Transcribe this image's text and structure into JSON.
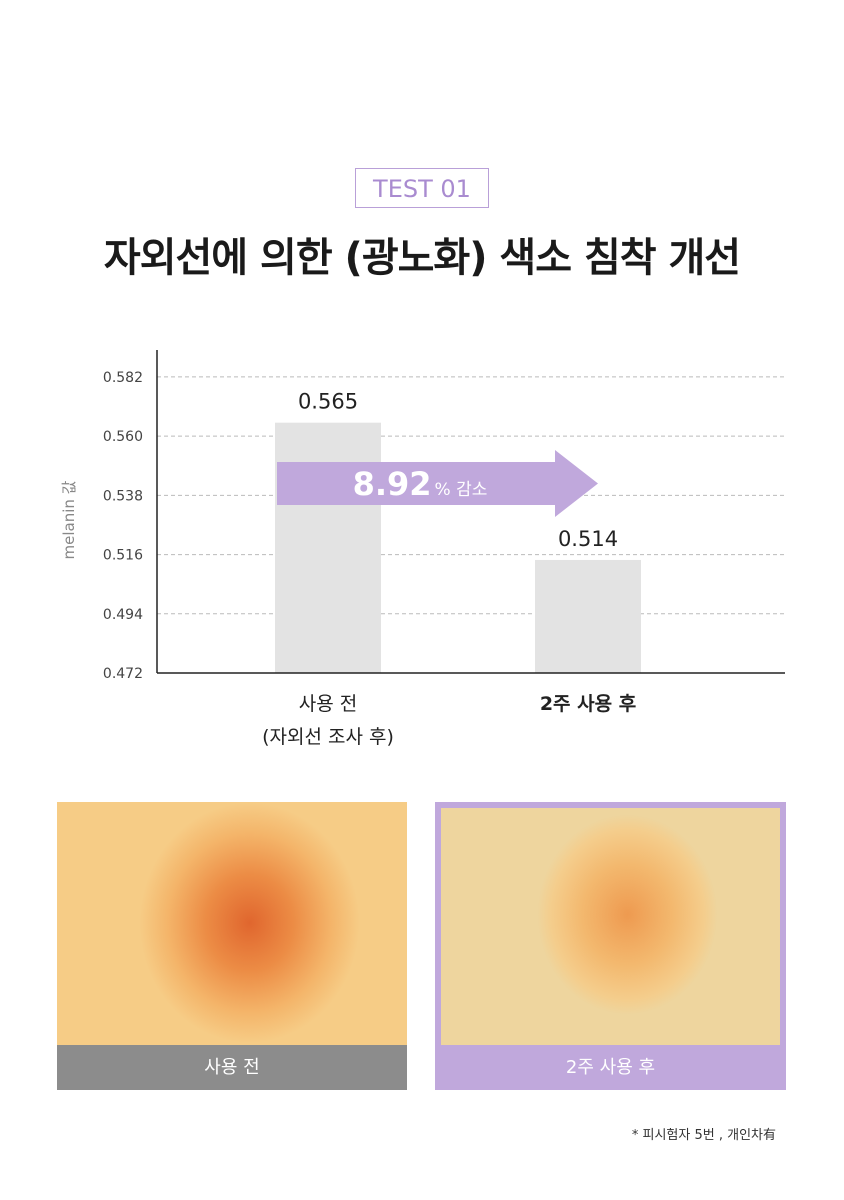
{
  "header": {
    "badge": "TEST 01",
    "title": "자외선에 의한 (광노화) 색소 침착 개선"
  },
  "chart_data": {
    "type": "bar",
    "y_label": "melanin 값",
    "categories": [
      "사용 전\n(자외선 조사 후)",
      "2주 사용 후"
    ],
    "values": [
      0.565,
      0.514
    ],
    "color": "#e3e3e3",
    "ylim": [
      0.472,
      0.592
    ],
    "yticks": [
      0.472,
      0.494,
      0.516,
      0.538,
      {
        "value": 0.56,
        "label": "0.560"
      },
      0.582
    ],
    "grid": true,
    "annotation": {
      "number": "8.92",
      "suffix": "% 감소",
      "color": "#c0a8dc"
    }
  },
  "images": [
    {
      "caption": "사용 전"
    },
    {
      "caption": "2주 사용 후"
    }
  ],
  "footnote": "* 피시험자 5번 , 개인차有"
}
